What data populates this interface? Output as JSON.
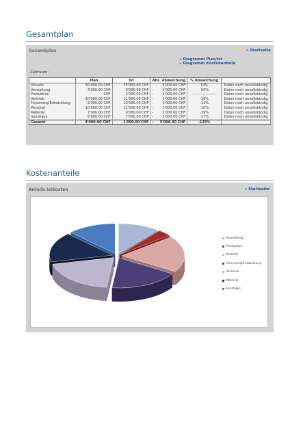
{
  "gesamtplan": {
    "heading": "Gesamtplan",
    "panel_title": "Gesamtplan",
    "startseite_link": "» Startseite",
    "link_diagramm_plan_ist": "» Diagramm Plan/Ist",
    "link_diagramm_kostenanteile": "» Diagramm Kostenanteile",
    "zeitraum_label": "Zeitraum:",
    "columns": [
      "",
      "Plan",
      "Ist",
      "Abs. Abweichung",
      "% Abweichung",
      ""
    ],
    "rows": [
      {
        "name": "Umsatz",
        "plan": "50'000.00 CHF",
        "ist": "55'000.00 CHF",
        "sign": "",
        "abs": "5'000.00 CHF",
        "pct": "10%",
        "status": "Daten noch unvollständig"
      },
      {
        "name": "Verwaltung",
        "plan": "4'000.00 CHF",
        "ist": "6'000.00 CHF",
        "sign": "-",
        "abs": "2'000.00 CHF",
        "pct": "-50%",
        "status": "Daten noch unvollständig"
      },
      {
        "name": "Produktion",
        "plan": "-   CHF",
        "ist": "2'000.00 CHF",
        "sign": "-",
        "abs": "2'000.00 CHF",
        "pct": "--------------------",
        "status": "Daten noch unvollständig"
      },
      {
        "name": "Vertrieb",
        "plan": "10'000.00 CHF",
        "ist": "11'000.00 CHF",
        "sign": "-",
        "abs": "1'000.00 CHF",
        "pct": "-10%",
        "status": "Daten noch unvollständig"
      },
      {
        "name": "Forschung/Entwicklung",
        "plan": "9'000.00 CHF",
        "ist": "10'000.00 CHF",
        "sign": "-",
        "abs": "1'000.00 CHF",
        "pct": "-11%",
        "status": "Daten noch unvollständig"
      },
      {
        "name": "Personal",
        "plan": "10'000.00 CHF",
        "ist": "11'000.00 CHF",
        "sign": "-",
        "abs": "1'000.00 CHF",
        "pct": "-10%",
        "status": "Daten noch unvollständig"
      },
      {
        "name": "Material",
        "plan": "7'000.00 CHF",
        "ist": "9'000.00 CHF",
        "sign": "-",
        "abs": "2'000.00 CHF",
        "pct": "-29%",
        "status": "Daten noch unvollständig"
      },
      {
        "name": "Sonstiges",
        "plan": "6'000.00 CHF",
        "ist": "7'000.00 CHF",
        "sign": "-",
        "abs": "1'000.00 CHF",
        "pct": "-17%",
        "status": "Daten noch unvollständig"
      }
    ],
    "total": {
      "name": "Gesamt",
      "plan": "4'000.00 CHF",
      "ist": "1'000.00 CHF",
      "sign": "-",
      "abs": "5'000.00 CHF",
      "pct": "-125%",
      "status": ""
    }
  },
  "kostenanteile": {
    "heading": "Kostenanteile",
    "panel_title": "Anteile Istkosten",
    "startseite_link": "» Startseite"
  },
  "chart_data": {
    "type": "pie",
    "title": "",
    "categories": [
      "Verwaltung",
      "Produktion",
      "Vertrieb",
      "Forschung/Entwicklung",
      "Personal",
      "Material",
      "Sonstiges"
    ],
    "values": [
      6000,
      2000,
      11000,
      10000,
      11000,
      9000,
      7000
    ],
    "colors": [
      "#a9b8d8",
      "#a52a2a",
      "#d9a8a4",
      "#4b3f7a",
      "#bdb6cf",
      "#1a2a4e",
      "#4a7cc4"
    ],
    "dark_colors": [
      "#7c89a6",
      "#6d1a1a",
      "#9d7571",
      "#2e2550",
      "#8a8398",
      "#0d1629",
      "#2f5690"
    ],
    "legend_position": "right",
    "style": "3d-exploded"
  }
}
